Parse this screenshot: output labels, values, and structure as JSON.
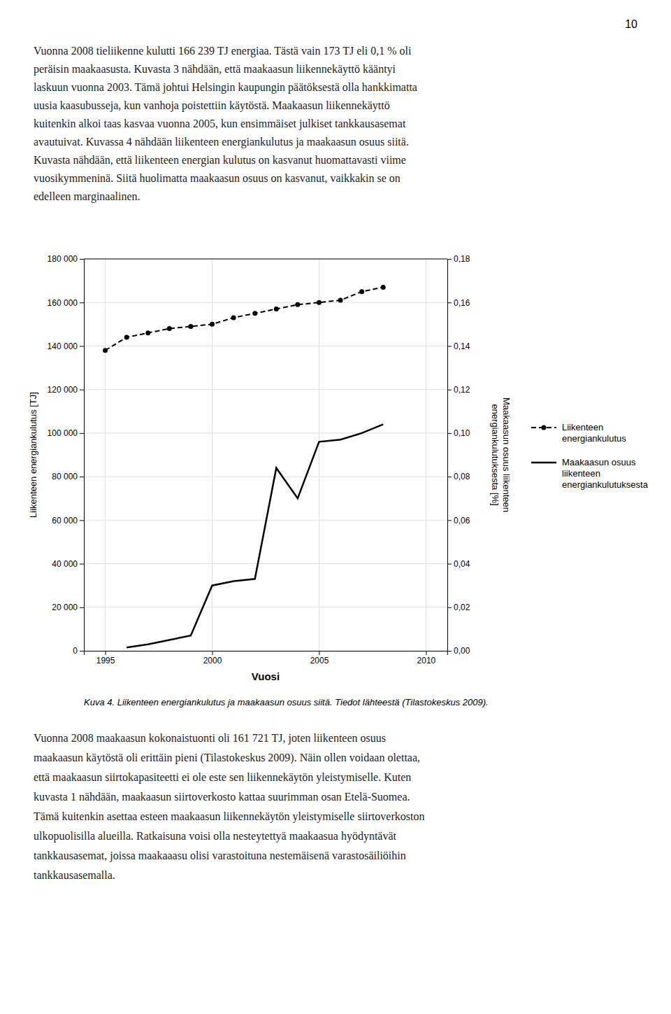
{
  "page_number": "10",
  "text_above": [
    "Vuonna 2008 tieliikenne kulutti 166 239 TJ energiaa. Tästä vain 173 TJ eli 0,1 % oli",
    "peräisin maakaasusta. Kuvasta 3 nähdään, että maakaasun liikennekäyttö kääntyi",
    "laskuun vuonna 2003. Tämä johtui Helsingin kaupungin päätöksestä olla hankkimatta",
    "uusia kaasubusseja, kun vanhoja poistettiin käytöstä. Maakaasun liikennekäyttö",
    "kuitenkin alkoi taas kasvaa vuonna 2005, kun ensimmäiset julkiset tankkausasemat",
    "avautuivat. Kuvassa 4 nähdään liikenteen energiankulutus ja maakaasun osuus siitä.",
    "Kuvasta nähdään, että liikenteen energian kulutus on kasvanut huomattavasti viime",
    "vuosikymmeninä. Siitä huolimatta maakaasun osuus on kasvanut, vaikkakin se on",
    "edelleen marginaalinen."
  ],
  "text_below": [
    "Vuonna 2008 maakaasun kokonaistuonti oli 161 721 TJ, joten liikenteen osuus",
    "maakaasun käytöstä oli erittäin pieni (Tilastokeskus 2009). Näin ollen voidaan olettaa,",
    "että maakaasun siirtokapasiteetti ei ole este sen liikennekäytön yleistymiselle. Kuten",
    "kuvasta 1 nähdään, maakaasun siirtoverkosto kattaa suurimman osan Etelä-Suomea.",
    "Tämä kuitenkin asettaa esteen maakaasun liikennekäytön yleistymiselle siirtoverkoston",
    "ulkopuolisilla alueilla. Ratkaisuna voisi olla nesteytettyä maakaasua hyödyntävät",
    "tankkausasemat, joissa maakaaasu olisi varastoituna nestemäisenä varastosäiliöihin",
    "tankkausasemalla."
  ],
  "chart_data": {
    "type": "line",
    "xlabel": "Vuosi",
    "ylabel": "Liikenteen energiankulutus [TJ]",
    "y2label": "Maakaasun osuus liikenteen\nenergiankulutuksesta [%]",
    "caption": "Kuva 4. Liikenteen energiankulutus ja maakaasun osuus siitä. Tiedot lähteestä (Tilastokeskus 2009).",
    "xlim": [
      1994,
      2011
    ],
    "xticks": [
      1995,
      2000,
      2005,
      2010
    ],
    "ylim": [
      0,
      180000
    ],
    "yticks": [
      0,
      {
        "value": 20000,
        "label": "20 000"
      },
      {
        "value": 40000,
        "label": "40 000"
      },
      {
        "value": 60000,
        "label": "60 000"
      },
      {
        "value": 80000,
        "label": "80 000"
      },
      {
        "value": 100000,
        "label": "100 000"
      },
      {
        "value": 120000,
        "label": "120 000"
      },
      {
        "value": 140000,
        "label": "140 000"
      },
      {
        "value": 160000,
        "label": "160 000"
      },
      {
        "value": 180000,
        "label": "180 000"
      }
    ],
    "y2lim": [
      0,
      0.18
    ],
    "y2ticks": [
      {
        "value": 0,
        "label": "0,00"
      },
      {
        "value": 0.02,
        "label": "0,02"
      },
      {
        "value": 0.04,
        "label": "0,04"
      },
      {
        "value": 0.06,
        "label": "0,06"
      },
      {
        "value": 0.08,
        "label": "0,08"
      },
      {
        "value": 0.1,
        "label": "0,10"
      },
      {
        "value": 0.12,
        "label": "0,12"
      },
      {
        "value": 0.14,
        "label": "0,14"
      },
      {
        "value": 0.16,
        "label": "0,16"
      },
      {
        "value": 0.18,
        "label": "0,18"
      }
    ],
    "grid": true,
    "legend": "right",
    "series": [
      {
        "name": "Liikenteen\nenergiankulutus",
        "color": "#000000",
        "line_style": "dashed",
        "marker": "circle",
        "axis": "y",
        "x": [
          1995,
          1996,
          1997,
          1998,
          1999,
          2000,
          2001,
          2002,
          2003,
          2004,
          2005,
          2006,
          2007,
          2008
        ],
        "values": [
          138000,
          144000,
          146000,
          148000,
          149000,
          150000,
          153000,
          155000,
          157000,
          159000,
          160000,
          161000,
          165000,
          167000
        ]
      },
      {
        "name": "Maakaasun osuus\nliikenteen\nenergiankulutuksesta",
        "color": "#000000",
        "line_style": "solid",
        "axis": "y2",
        "x": [
          1996,
          1997,
          1998,
          1999,
          2000,
          2001,
          2002,
          2003,
          2004,
          2005,
          2006,
          2007,
          2008
        ],
        "values": [
          0.0015,
          0.003,
          0.005,
          0.007,
          0.03,
          0.032,
          0.033,
          0.084,
          0.07,
          0.096,
          0.097,
          0.1,
          0.104
        ]
      }
    ]
  }
}
